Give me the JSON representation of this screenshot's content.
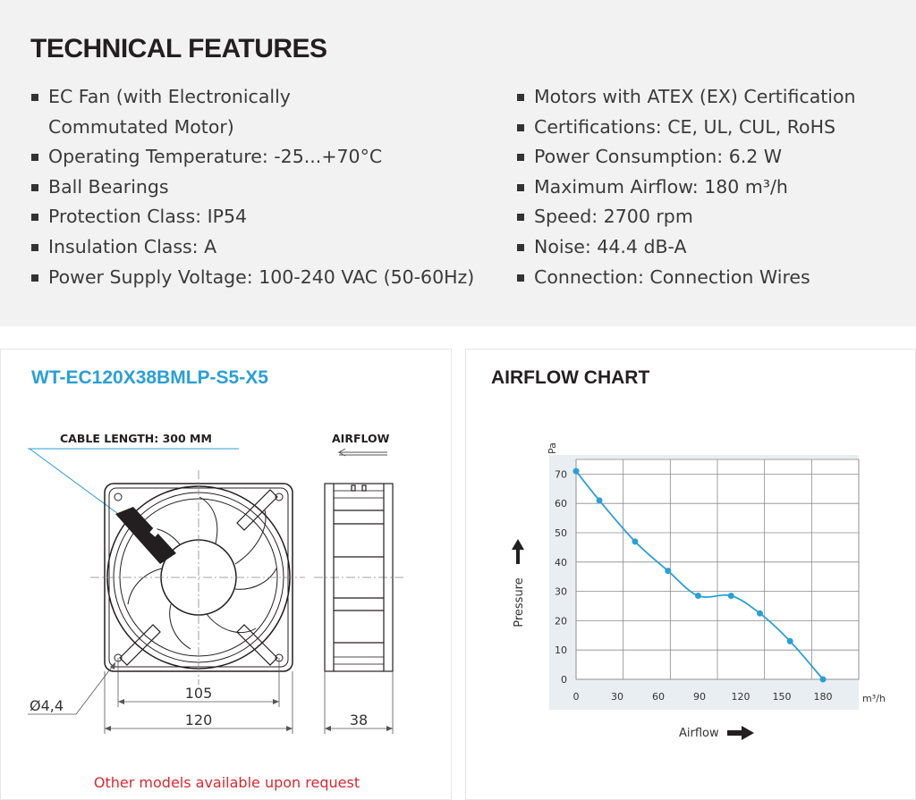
{
  "features": {
    "title": "TECHNICAL FEATURES",
    "left": [
      "EC Fan (with Electronically",
      "Commutated Motor)",
      "Operating Temperature: -25...+70°C",
      "Ball Bearings",
      "Protection Class: IP54",
      "Insulation Class: A",
      "Power Supply Voltage: 100-240 VAC (50-60Hz)"
    ],
    "right": [
      "Motors with ATEX (EX) Certification",
      "Certifications: CE, UL, CUL, RoHS",
      "Power Consumption: 6.2 W",
      "Maximum Airflow: 180 m³/h",
      "Speed: 2700 rpm",
      "Noise: 44.4 dB-A",
      "Connection: Connection Wires"
    ]
  },
  "drawing": {
    "model": "WT-EC120X38BMLP-S5-X5",
    "cable_label": "CABLE LENGTH: 300 MM",
    "airflow_label": "AIRFLOW",
    "dim_hole": "Ø4,4",
    "dim_105": "105",
    "dim_120": "120",
    "dim_38": "38",
    "note": "Other models available upon request"
  },
  "colors": {
    "accent": "#2a9fd8",
    "note_red": "#d9282f",
    "panel_bg": "#f2f2f2"
  },
  "chart_data": {
    "type": "line",
    "title": "AIRFLOW CHART",
    "xlabel": "Airflow",
    "ylabel": "Pressure",
    "xunit": "m³/h",
    "yunit": "Pa",
    "xlim": [
      0,
      180
    ],
    "ylim": [
      0,
      70
    ],
    "xticks": [
      0,
      30,
      60,
      90,
      120,
      150,
      180
    ],
    "yticks": [
      0,
      10,
      20,
      30,
      40,
      50,
      60,
      70
    ],
    "grid": true,
    "series": [
      {
        "x": [
          0,
          17,
          43,
          67,
          89,
          113,
          134,
          156,
          180
        ],
        "y": [
          71,
          61,
          47,
          37,
          28.5,
          28.5,
          22.5,
          13,
          0
        ]
      }
    ]
  }
}
